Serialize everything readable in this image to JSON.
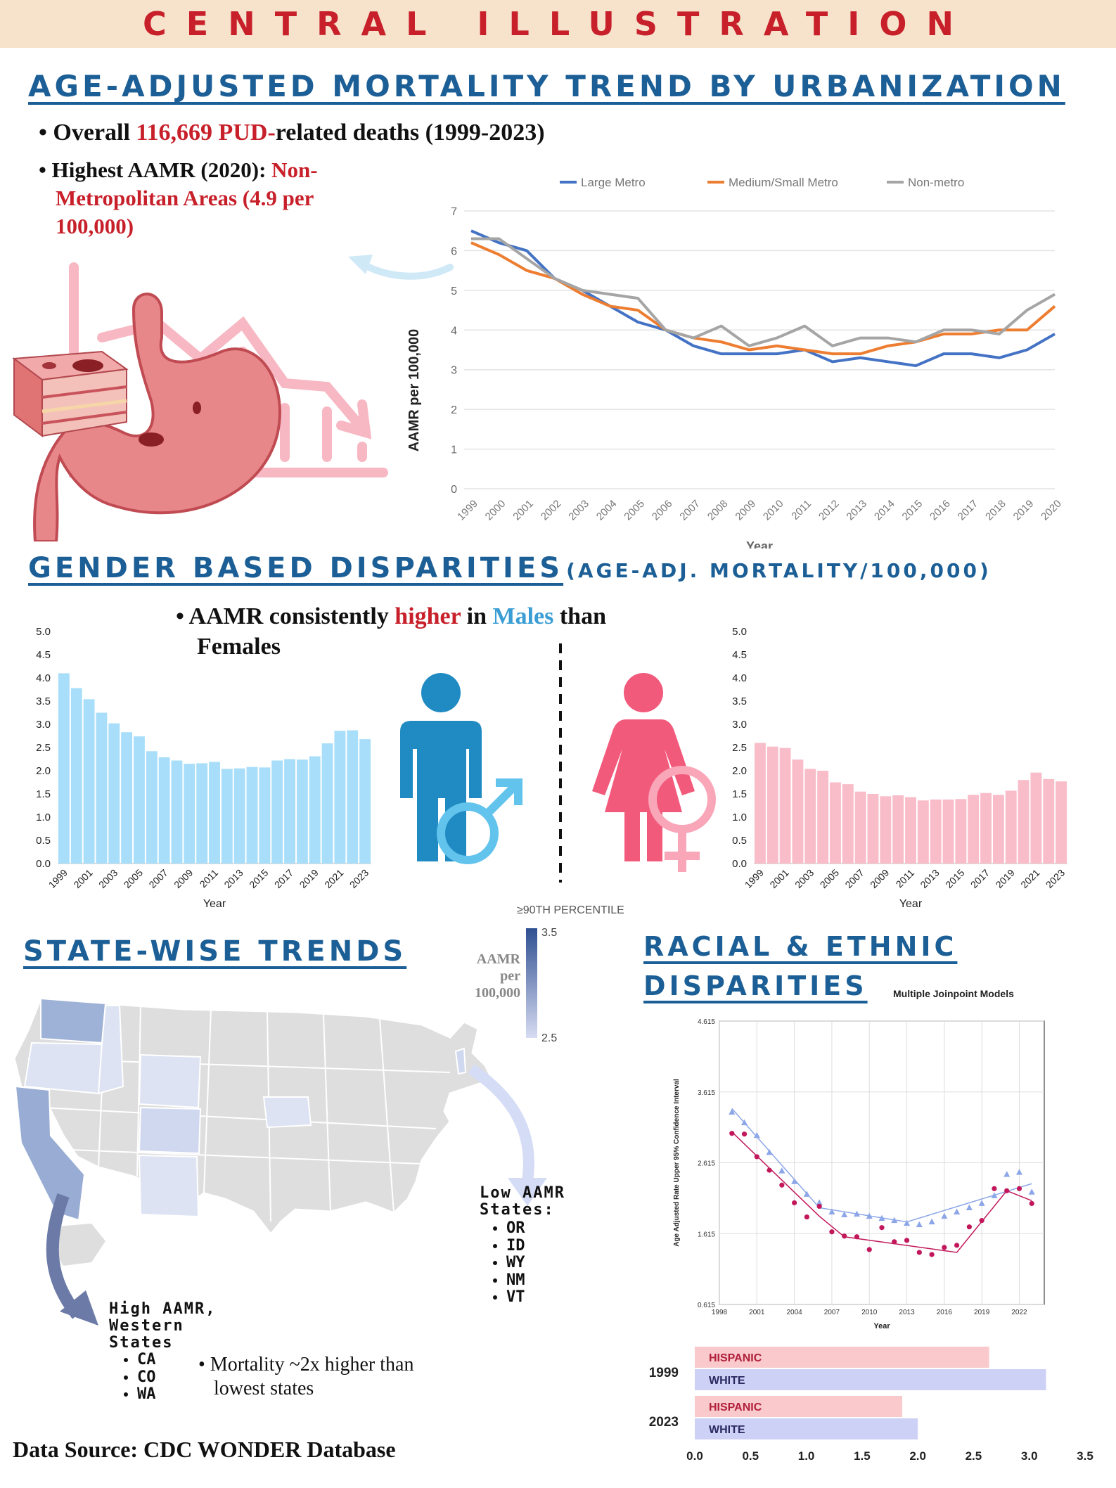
{
  "banner": {
    "title": "CENTRAL ILLUSTRATION"
  },
  "section1": {
    "title": "AGE-ADJUSTED MORTALITY TREND BY URBANIZATION",
    "bullet1_a": "Overall ",
    "bullet1_b": "116,669 PUD-",
    "bullet1_c": "related deaths (1999-2023)",
    "bullet2_a": "Highest AAMR (2020): ",
    "bullet2_b": "Non-Metropolitan Areas (4.9 per 100,000)"
  },
  "section2": {
    "title": "GENDER BASED DISPARITIES",
    "subtitle": "(AGE-ADJ. MORTALITY/100,000)",
    "bullet_a": "AAMR consistently ",
    "bullet_b": "higher",
    "bullet_c": " in ",
    "bullet_d": "Males",
    "bullet_e": " than Females"
  },
  "section3": {
    "title": "STATE-WISE TRENDS",
    "legend_top": "≥90TH PERCENTILE",
    "legend_label": "AAMR per 100,000",
    "legend_max": "3.5",
    "legend_min": "2.5",
    "low_title": "Low AAMR States:",
    "low_states": [
      "OR",
      "ID",
      "WY",
      "NM",
      "VT"
    ],
    "high_title": "High AAMR, Western States",
    "high_states": [
      "CA",
      "CO",
      "WA"
    ],
    "note": "Mortality ~2x higher than lowest states",
    "source": "Data Source: CDC WONDER Database"
  },
  "section4": {
    "title_line1": "RACIAL & ETHNIC",
    "title_line2": "DISPARITIES",
    "chart_title": "Multiple Joinpoint Models"
  },
  "chart_data": [
    {
      "type": "line",
      "title": "",
      "xlabel": "Year",
      "ylabel": "AAMR per 100,000",
      "ylim": [
        0,
        7
      ],
      "yticks": [
        "0",
        "1",
        "2",
        "3",
        "4",
        "5",
        "6",
        "7"
      ],
      "grid": true,
      "legend_position": "top",
      "x": [
        "1999",
        "2000",
        "2001",
        "2002",
        "2003",
        "2004",
        "2005",
        "2006",
        "2007",
        "2008",
        "2009",
        "2010",
        "2011",
        "2012",
        "2013",
        "2014",
        "2015",
        "2016",
        "2017",
        "2018",
        "2019",
        "2020"
      ],
      "series": [
        {
          "name": "Large Metro",
          "color": "#4472c4",
          "values": [
            6.5,
            6.2,
            6.0,
            5.3,
            5.0,
            4.6,
            4.2,
            4.0,
            3.6,
            3.4,
            3.4,
            3.4,
            3.5,
            3.2,
            3.3,
            3.2,
            3.1,
            3.4,
            3.4,
            3.3,
            3.5,
            3.9
          ]
        },
        {
          "name": "Medium/Small Metro",
          "color": "#ed7d31",
          "values": [
            6.2,
            5.9,
            5.5,
            5.3,
            4.9,
            4.6,
            4.5,
            4.0,
            3.8,
            3.7,
            3.5,
            3.6,
            3.5,
            3.4,
            3.4,
            3.6,
            3.7,
            3.9,
            3.9,
            4.0,
            4.0,
            4.6
          ]
        },
        {
          "name": "Non-metro",
          "color": "#a5a5a5",
          "values": [
            6.3,
            6.3,
            5.8,
            5.3,
            5.0,
            4.9,
            4.8,
            4.0,
            3.8,
            4.1,
            3.6,
            3.8,
            4.1,
            3.6,
            3.8,
            3.8,
            3.7,
            4.0,
            4.0,
            3.9,
            4.5,
            4.9
          ]
        }
      ]
    },
    {
      "type": "bar",
      "title": "",
      "xlabel": "Year",
      "ylabel": "",
      "ylim": [
        0,
        5
      ],
      "yticks": [
        "0.0",
        "0.5",
        "1.0",
        "1.5",
        "2.0",
        "2.5",
        "3.0",
        "3.5",
        "4.0",
        "4.5",
        "5.0"
      ],
      "xticks": [
        "1999",
        "2001",
        "2003",
        "2005",
        "2007",
        "2009",
        "2011",
        "2013",
        "2015",
        "2017",
        "2019",
        "2021",
        "2023"
      ],
      "color": "#a8defa",
      "categories": [
        "1999",
        "2000",
        "2001",
        "2002",
        "2003",
        "2004",
        "2005",
        "2006",
        "2007",
        "2008",
        "2009",
        "2010",
        "2011",
        "2012",
        "2013",
        "2014",
        "2015",
        "2016",
        "2017",
        "2018",
        "2019",
        "2020",
        "2021",
        "2022",
        "2023"
      ],
      "values": [
        4.1,
        3.78,
        3.54,
        3.25,
        3.02,
        2.83,
        2.74,
        2.42,
        2.29,
        2.22,
        2.15,
        2.16,
        2.19,
        2.04,
        2.05,
        2.08,
        2.07,
        2.22,
        2.25,
        2.24,
        2.31,
        2.59,
        2.86,
        2.87,
        2.68
      ]
    },
    {
      "type": "bar",
      "title": "",
      "xlabel": "Year",
      "ylabel": "",
      "ylim": [
        0,
        5
      ],
      "yticks": [
        "0.0",
        "0.5",
        "1.0",
        "1.5",
        "2.0",
        "2.5",
        "3.0",
        "3.5",
        "4.0",
        "4.5",
        "5.0"
      ],
      "xticks": [
        "1999",
        "2001",
        "2003",
        "2005",
        "2007",
        "2009",
        "2011",
        "2013",
        "2015",
        "2017",
        "2019",
        "2021",
        "2023"
      ],
      "color": "#f9bcc9",
      "categories": [
        "1999",
        "2000",
        "2001",
        "2002",
        "2003",
        "2004",
        "2005",
        "2006",
        "2007",
        "2008",
        "2009",
        "2010",
        "2011",
        "2012",
        "2013",
        "2014",
        "2015",
        "2016",
        "2017",
        "2018",
        "2019",
        "2020",
        "2021",
        "2022",
        "2023"
      ],
      "values": [
        2.6,
        2.52,
        2.49,
        2.24,
        2.04,
        2.0,
        1.75,
        1.71,
        1.55,
        1.5,
        1.45,
        1.47,
        1.43,
        1.36,
        1.38,
        1.38,
        1.39,
        1.48,
        1.52,
        1.48,
        1.57,
        1.8,
        1.96,
        1.82,
        1.77
      ]
    },
    {
      "type": "scatter",
      "title": "Multiple Joinpoint Models",
      "xlabel": "Year",
      "ylabel": "Age Adjusted Rate Upper 95% Confidence Interval",
      "xlim": [
        1998,
        2024
      ],
      "ylim": [
        0.615,
        4.615
      ],
      "xticks": [
        "1998",
        "2001",
        "2004",
        "2007",
        "2010",
        "2013",
        "2016",
        "2019",
        "2022"
      ],
      "yticks": [
        "0.615",
        "1.615",
        "2.615",
        "3.615",
        "4.615"
      ],
      "grid": true,
      "series": [
        {
          "name": "",
          "color": "#8ca6e8",
          "marker": "triangle",
          "x": [
            1999,
            2000,
            2001,
            2002,
            2003,
            2004,
            2005,
            2006,
            2007,
            2008,
            2009,
            2010,
            2011,
            2012,
            2013,
            2014,
            2015,
            2016,
            2017,
            2018,
            2019,
            2020,
            2021,
            2022,
            2023
          ],
          "values": [
            3.33,
            3.18,
            3.0,
            2.76,
            2.5,
            2.35,
            2.17,
            2.05,
            1.92,
            1.88,
            1.89,
            1.86,
            1.83,
            1.8,
            1.76,
            1.74,
            1.78,
            1.86,
            1.92,
            1.98,
            2.04,
            2.15,
            2.45,
            2.48,
            2.2
          ],
          "fit": [
            [
              1999,
              3.38
            ],
            [
              2006,
              1.98
            ],
            [
              2013,
              1.78
            ],
            [
              2023,
              2.32
            ]
          ]
        },
        {
          "name": "",
          "color": "#c2185b",
          "marker": "dot",
          "x": [
            1999,
            2000,
            2001,
            2002,
            2003,
            2004,
            2005,
            2006,
            2007,
            2008,
            2009,
            2010,
            2011,
            2012,
            2013,
            2014,
            2015,
            2016,
            2017,
            2018,
            2019,
            2020,
            2021,
            2022,
            2023
          ],
          "values": [
            3.03,
            3.02,
            2.7,
            2.51,
            2.3,
            2.05,
            1.85,
            2.0,
            1.64,
            1.58,
            1.57,
            1.39,
            1.7,
            1.5,
            1.52,
            1.35,
            1.32,
            1.42,
            1.45,
            1.71,
            1.8,
            2.25,
            2.22,
            2.25,
            2.04
          ],
          "fit": [
            [
              1999,
              3.05
            ],
            [
              2006,
              1.86
            ],
            [
              2008,
              1.57
            ],
            [
              2017,
              1.35
            ],
            [
              2021,
              2.22
            ],
            [
              2023,
              2.08
            ]
          ]
        }
      ]
    },
    {
      "type": "bar",
      "orientation": "horizontal",
      "title": "",
      "xlim": [
        0,
        3.5
      ],
      "xticks": [
        "0.0",
        "0.5",
        "1.0",
        "1.5",
        "2.0",
        "2.5",
        "3.0",
        "3.5"
      ],
      "groups": [
        "1999",
        "2023"
      ],
      "series": [
        {
          "name": "HISPANIC",
          "color": "#f9c9cc",
          "values": [
            2.64,
            1.86
          ]
        },
        {
          "name": "WHITE",
          "color": "#cdd1f6",
          "values": [
            3.15,
            2.0
          ]
        }
      ]
    }
  ]
}
